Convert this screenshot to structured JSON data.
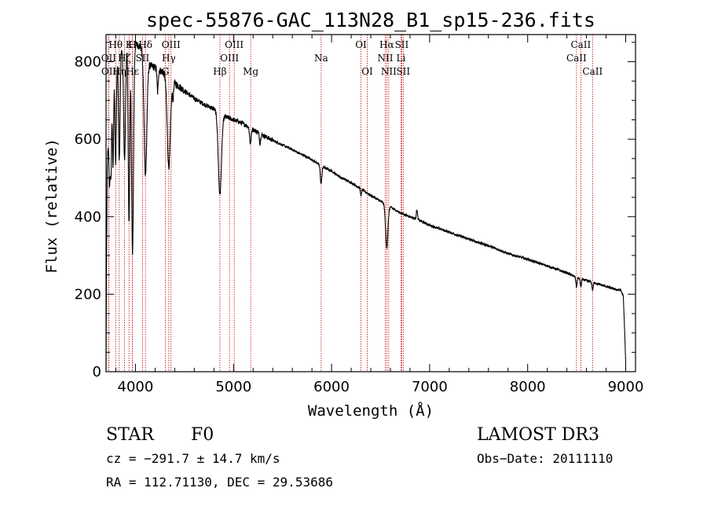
{
  "chart_data": {
    "type": "line",
    "title": "spec-55876-GAC_113N28_B1_sp15-236.fits",
    "xlabel": "Wavelength (Å)",
    "ylabel": "Flux (relative)",
    "xlim": [
      3700,
      9100
    ],
    "ylim": [
      0,
      870
    ],
    "xticks": [
      4000,
      5000,
      6000,
      7000,
      8000,
      9000
    ],
    "yticks": [
      0,
      200,
      400,
      600,
      800
    ],
    "series": [
      {
        "name": "spectrum",
        "continuum": [
          [
            3700,
            0
          ],
          [
            3705,
            270
          ],
          [
            3712,
            520
          ],
          [
            3730,
            650
          ],
          [
            3760,
            740
          ],
          [
            3800,
            800
          ],
          [
            3850,
            830
          ],
          [
            3900,
            850
          ],
          [
            3950,
            855
          ],
          [
            4000,
            845
          ],
          [
            4050,
            840
          ],
          [
            4100,
            810
          ],
          [
            4150,
            790
          ],
          [
            4200,
            785
          ],
          [
            4300,
            770
          ],
          [
            4400,
            745
          ],
          [
            4500,
            725
          ],
          [
            4600,
            705
          ],
          [
            4700,
            690
          ],
          [
            4800,
            678
          ],
          [
            4900,
            660
          ],
          [
            5000,
            650
          ],
          [
            5100,
            640
          ],
          [
            5200,
            625
          ],
          [
            5300,
            610
          ],
          [
            5400,
            597
          ],
          [
            5500,
            585
          ],
          [
            5600,
            573
          ],
          [
            5700,
            560
          ],
          [
            5800,
            547
          ],
          [
            5900,
            530
          ],
          [
            6000,
            518
          ],
          [
            6100,
            500
          ],
          [
            6200,
            488
          ],
          [
            6300,
            472
          ],
          [
            6400,
            455
          ],
          [
            6500,
            440
          ],
          [
            6600,
            425
          ],
          [
            6700,
            410
          ],
          [
            6800,
            400
          ],
          [
            6900,
            390
          ],
          [
            7000,
            378
          ],
          [
            7200,
            360
          ],
          [
            7400,
            342
          ],
          [
            7600,
            325
          ],
          [
            7800,
            305
          ],
          [
            8000,
            290
          ],
          [
            8200,
            273
          ],
          [
            8400,
            255
          ],
          [
            8500,
            243
          ],
          [
            8600,
            235
          ],
          [
            8700,
            228
          ],
          [
            8800,
            220
          ],
          [
            8900,
            212
          ],
          [
            8950,
            210
          ],
          [
            8975,
            195
          ],
          [
            8990,
            100
          ],
          [
            9000,
            20
          ]
        ],
        "absorption_features": [
          {
            "center": 3735,
            "depth": 180,
            "width": 6
          },
          {
            "center": 3750,
            "depth": 210,
            "width": 6
          },
          {
            "center": 3771,
            "depth": 230,
            "width": 6
          },
          {
            "center": 3798,
            "depth": 260,
            "width": 7
          },
          {
            "center": 3835,
            "depth": 270,
            "width": 8
          },
          {
            "center": 3889,
            "depth": 300,
            "width": 10
          },
          {
            "center": 3934,
            "depth": 470,
            "width": 8
          },
          {
            "center": 3970,
            "depth": 550,
            "width": 10
          },
          {
            "center": 4102,
            "depth": 300,
            "width": 14
          },
          {
            "center": 4226,
            "depth": 60,
            "width": 6
          },
          {
            "center": 4340,
            "depth": 230,
            "width": 16
          },
          {
            "center": 4383,
            "depth": 40,
            "width": 6
          },
          {
            "center": 4861,
            "depth": 210,
            "width": 16
          },
          {
            "center": 5172,
            "depth": 40,
            "width": 8
          },
          {
            "center": 5270,
            "depth": 25,
            "width": 6
          },
          {
            "center": 5893,
            "depth": 45,
            "width": 8
          },
          {
            "center": 6300,
            "depth": 20,
            "width": 5
          },
          {
            "center": 6563,
            "depth": 110,
            "width": 12
          },
          {
            "center": 8498,
            "depth": 25,
            "width": 6
          },
          {
            "center": 8542,
            "depth": 20,
            "width": 6
          },
          {
            "center": 8662,
            "depth": 20,
            "width": 6
          }
        ],
        "emission_features": [
          {
            "center": 6870,
            "height": 25,
            "width": 6
          }
        ]
      }
    ],
    "spectral_lines": [
      {
        "label": "Hδ",
        "wl": 4102,
        "row": 0
      },
      {
        "label": "Hγ",
        "wl": 4340,
        "row": 1
      },
      {
        "label": "Hβ",
        "wl": 4861,
        "row": 2
      },
      {
        "label": "Hα",
        "wl": 6563,
        "row": 0
      },
      {
        "label": "Hε",
        "wl": 3970,
        "row": 2
      },
      {
        "label": "Hζ",
        "wl": 3889,
        "row": 1
      },
      {
        "label": "Hη",
        "wl": 3835,
        "row": 2
      },
      {
        "label": "Hθ",
        "wl": 3798,
        "row": 0
      },
      {
        "label": "K",
        "wl": 3934,
        "row": 0
      },
      {
        "label": "H",
        "wl": 3968,
        "row": 0
      },
      {
        "label": "G",
        "wl": 4305,
        "row": 2
      },
      {
        "label": "Mg",
        "wl": 5175,
        "row": 2
      },
      {
        "label": "Na",
        "wl": 5894,
        "row": 1
      },
      {
        "label": "OII",
        "wl": 3727,
        "row": 1
      },
      {
        "label": "OII",
        "wl": 3729,
        "row": 2
      },
      {
        "label": "SII",
        "wl": 4072,
        "row": 1
      },
      {
        "label": "OIII",
        "wl": 4363,
        "row": 0
      },
      {
        "label": "OIII",
        "wl": 4959,
        "row": 1
      },
      {
        "label": "OIII",
        "wl": 5007,
        "row": 0
      },
      {
        "label": "OI",
        "wl": 6300,
        "row": 0
      },
      {
        "label": "OI",
        "wl": 6364,
        "row": 2
      },
      {
        "label": "NII",
        "wl": 6548,
        "row": 1
      },
      {
        "label": "NII",
        "wl": 6583,
        "row": 2
      },
      {
        "label": "Li",
        "wl": 6708,
        "row": 1
      },
      {
        "label": "SII",
        "wl": 6716,
        "row": 0
      },
      {
        "label": "SII",
        "wl": 6731,
        "row": 2
      },
      {
        "label": "CaII",
        "wl": 8498,
        "row": 1
      },
      {
        "label": "CaII",
        "wl": 8542,
        "row": 0
      },
      {
        "label": "CaII",
        "wl": 8662,
        "row": 2
      }
    ]
  },
  "info": {
    "class": "STAR",
    "subclass": "F0",
    "survey": "LAMOST DR3",
    "cz": "cz = −291.7 ± 14.7 km/s",
    "obs_date": "Obs−Date: 20111110",
    "coords": "RA = 112.71130, DEC =  29.53686"
  },
  "colors": {
    "spectrum": "#000000",
    "line_markers": "#cc0000",
    "axes": "#000000"
  }
}
